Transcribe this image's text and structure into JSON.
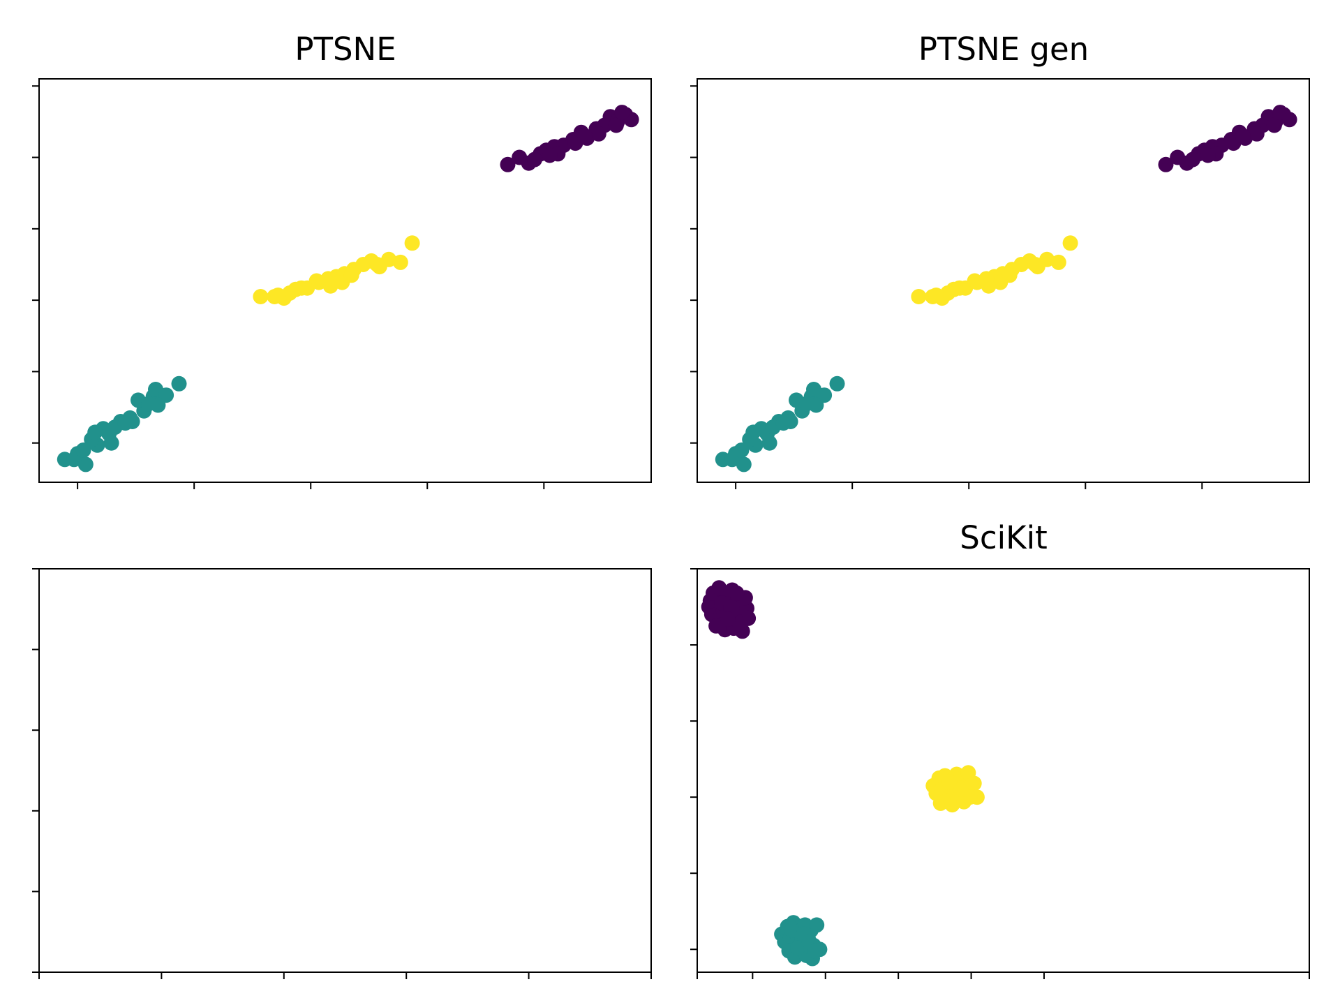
{
  "colors": {
    "purple": "#440154",
    "teal": "#21918c",
    "yellow": "#fde725",
    "axis": "#000000"
  },
  "chart_data": [
    {
      "type": "scatter",
      "title": "PTSNE",
      "xlabel": "",
      "ylabel": "",
      "xlim": [
        0,
        5.25
      ],
      "ylim": [
        0,
        5.65
      ],
      "x_ticks": [
        0.33,
        1.33,
        2.33,
        3.33,
        4.33
      ],
      "y_ticks": [
        0.55,
        1.55,
        2.55,
        3.55,
        4.55,
        5.55
      ],
      "tick_labels_shown": false,
      "grid": false,
      "series": [
        {
          "color": "teal",
          "x": [
            0.22,
            0.3,
            0.4,
            0.33,
            0.5,
            0.45,
            0.6,
            0.55,
            0.7,
            0.65,
            0.78,
            0.9,
            0.85,
            0.98,
            1.0,
            1.09,
            1.2,
            1.02,
            0.8,
            0.62,
            0.38,
            0.48,
            0.74,
            0.94
          ],
          "y": [
            0.32,
            0.32,
            0.25,
            0.4,
            0.52,
            0.6,
            0.68,
            0.75,
            0.85,
            0.77,
            0.9,
            1.0,
            1.15,
            1.2,
            1.3,
            1.22,
            1.38,
            1.08,
            0.85,
            0.55,
            0.45,
            0.7,
            0.83,
            1.1
          ]
        },
        {
          "color": "yellow",
          "x": [
            1.9,
            2.02,
            2.1,
            2.2,
            2.3,
            2.38,
            2.5,
            2.55,
            2.62,
            2.7,
            2.78,
            2.85,
            2.92,
            3.0,
            3.1,
            3.2,
            2.15,
            2.4,
            2.6,
            2.25,
            2.68,
            2.9,
            2.05,
            2.48
          ],
          "y": [
            2.6,
            2.6,
            2.58,
            2.7,
            2.72,
            2.82,
            2.75,
            2.88,
            2.92,
            2.98,
            3.05,
            3.1,
            3.02,
            3.12,
            3.08,
            3.35,
            2.65,
            2.8,
            2.8,
            2.72,
            2.9,
            3.05,
            2.62,
            2.85
          ]
        },
        {
          "color": "purple",
          "x": [
            4.02,
            4.12,
            4.2,
            4.3,
            4.35,
            4.42,
            4.5,
            4.58,
            4.65,
            4.7,
            4.78,
            4.85,
            4.9,
            4.96,
            5.03,
            5.08,
            4.25,
            4.6,
            4.8,
            4.45,
            4.95,
            4.68,
            4.38,
            5.0
          ],
          "y": [
            4.45,
            4.55,
            4.47,
            4.6,
            4.65,
            4.7,
            4.72,
            4.8,
            4.9,
            4.82,
            4.95,
            5.0,
            5.12,
            5.05,
            5.15,
            5.08,
            4.52,
            4.75,
            4.88,
            4.6,
            5.0,
            4.85,
            4.58,
            5.18
          ]
        }
      ]
    },
    {
      "type": "scatter",
      "title": "PTSNE gen",
      "xlabel": "",
      "ylabel": "",
      "xlim": [
        0,
        5.25
      ],
      "ylim": [
        0,
        5.65
      ],
      "x_ticks": [
        0.33,
        1.33,
        2.33,
        3.33,
        4.33
      ],
      "y_ticks": [
        0.55,
        1.55,
        2.55,
        3.55,
        4.55,
        5.55
      ],
      "tick_labels_shown": false,
      "grid": false,
      "series": [
        {
          "color": "teal",
          "x": [
            0.22,
            0.3,
            0.4,
            0.33,
            0.5,
            0.45,
            0.6,
            0.55,
            0.7,
            0.65,
            0.78,
            0.9,
            0.85,
            0.98,
            1.0,
            1.09,
            1.2,
            1.02,
            0.8,
            0.62,
            0.38,
            0.48,
            0.74,
            0.94
          ],
          "y": [
            0.32,
            0.32,
            0.25,
            0.4,
            0.52,
            0.6,
            0.68,
            0.75,
            0.85,
            0.77,
            0.9,
            1.0,
            1.15,
            1.2,
            1.3,
            1.22,
            1.38,
            1.08,
            0.85,
            0.55,
            0.45,
            0.7,
            0.83,
            1.1
          ]
        },
        {
          "color": "yellow",
          "x": [
            1.9,
            2.02,
            2.1,
            2.2,
            2.3,
            2.38,
            2.5,
            2.55,
            2.62,
            2.7,
            2.78,
            2.85,
            2.92,
            3.0,
            3.1,
            3.2,
            2.15,
            2.4,
            2.6,
            2.25,
            2.68,
            2.9,
            2.05,
            2.48
          ],
          "y": [
            2.6,
            2.6,
            2.58,
            2.7,
            2.72,
            2.82,
            2.75,
            2.88,
            2.92,
            2.98,
            3.05,
            3.1,
            3.02,
            3.12,
            3.08,
            3.35,
            2.65,
            2.8,
            2.8,
            2.72,
            2.9,
            3.05,
            2.62,
            2.85
          ]
        },
        {
          "color": "purple",
          "x": [
            4.02,
            4.12,
            4.2,
            4.3,
            4.35,
            4.42,
            4.5,
            4.58,
            4.65,
            4.7,
            4.78,
            4.85,
            4.9,
            4.96,
            5.03,
            5.08,
            4.25,
            4.6,
            4.8,
            4.45,
            4.95,
            4.68,
            4.38,
            5.0
          ],
          "y": [
            4.45,
            4.55,
            4.47,
            4.6,
            4.65,
            4.7,
            4.72,
            4.8,
            4.9,
            4.82,
            4.95,
            5.0,
            5.12,
            5.05,
            5.15,
            5.08,
            4.52,
            4.75,
            4.88,
            4.6,
            5.0,
            4.85,
            4.58,
            5.18
          ]
        }
      ]
    },
    {
      "type": "scatter",
      "title": "",
      "xlabel": "",
      "ylabel": "",
      "xlim": [
        0,
        5
      ],
      "ylim": [
        0,
        5
      ],
      "x_ticks": [
        0,
        1,
        2,
        3,
        4,
        5
      ],
      "y_ticks": [
        0,
        1,
        2,
        3,
        4,
        5
      ],
      "tick_labels_shown": false,
      "grid": false,
      "series": []
    },
    {
      "type": "scatter",
      "title": "SciKit",
      "xlabel": "",
      "ylabel": "",
      "xlim": [
        0,
        4.2
      ],
      "ylim": [
        0,
        5.3
      ],
      "x_ticks": [
        0.38,
        0.88,
        1.38,
        1.88,
        2.38
      ],
      "y_ticks": [
        0.3,
        1.3,
        2.3,
        3.3,
        4.3,
        5.3
      ],
      "tick_labels_shown": false,
      "grid": false,
      "x_tick_extra": [
        0,
        4.2
      ],
      "series": [
        {
          "color": "purple",
          "x": [
            0.08,
            0.12,
            0.16,
            0.2,
            0.24,
            0.28,
            0.32,
            0.1,
            0.14,
            0.18,
            0.22,
            0.26,
            0.3,
            0.34,
            0.09,
            0.13,
            0.19,
            0.25,
            0.31,
            0.35,
            0.11,
            0.17,
            0.23,
            0.29,
            0.33,
            0.15,
            0.21,
            0.27
          ],
          "y": [
            4.8,
            4.92,
            5.0,
            4.95,
            5.02,
            4.9,
            4.85,
            4.7,
            4.62,
            4.75,
            4.68,
            4.72,
            4.6,
            4.78,
            4.88,
            4.55,
            4.5,
            4.52,
            4.48,
            4.65,
            4.98,
            4.85,
            4.8,
            4.58,
            4.92,
            5.05,
            4.64,
            4.98
          ]
        },
        {
          "color": "teal",
          "x": [
            0.58,
            0.62,
            0.66,
            0.7,
            0.74,
            0.78,
            0.82,
            0.6,
            0.64,
            0.68,
            0.72,
            0.76,
            0.8,
            0.84,
            0.63,
            0.67,
            0.71,
            0.75,
            0.79,
            0.65,
            0.69,
            0.73,
            0.77,
            0.81
          ],
          "y": [
            0.5,
            0.6,
            0.65,
            0.58,
            0.62,
            0.55,
            0.62,
            0.4,
            0.45,
            0.38,
            0.42,
            0.48,
            0.35,
            0.3,
            0.28,
            0.2,
            0.25,
            0.22,
            0.18,
            0.55,
            0.32,
            0.5,
            0.4,
            0.28
          ]
        },
        {
          "color": "yellow",
          "x": [
            1.62,
            1.66,
            1.7,
            1.74,
            1.78,
            1.82,
            1.86,
            1.9,
            1.64,
            1.68,
            1.72,
            1.76,
            1.8,
            1.84,
            1.88,
            1.92,
            1.67,
            1.71,
            1.75,
            1.79,
            1.83,
            1.87,
            1.73,
            1.81
          ],
          "y": [
            2.45,
            2.55,
            2.58,
            2.5,
            2.6,
            2.55,
            2.62,
            2.48,
            2.35,
            2.4,
            2.3,
            2.38,
            2.42,
            2.32,
            2.45,
            2.3,
            2.22,
            2.25,
            2.2,
            2.28,
            2.24,
            2.3,
            2.5,
            2.4
          ]
        }
      ]
    }
  ],
  "panels": [
    {
      "title": "PTSNE"
    },
    {
      "title": "PTSNE gen"
    },
    {
      "title": ""
    },
    {
      "title": "SciKit"
    }
  ]
}
